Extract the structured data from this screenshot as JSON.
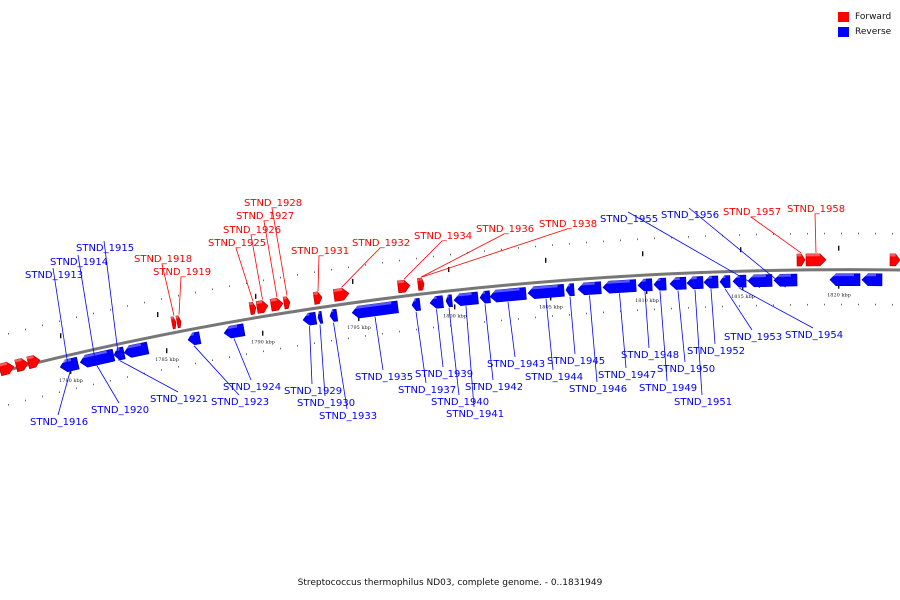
{
  "legend": [
    {
      "label": "Forward",
      "color": "#ff0000"
    },
    {
      "label": "Reverse",
      "color": "#0000ff"
    }
  ],
  "caption": "Streptococcus thermophilus ND03, complete genome. - 0..1831949",
  "colors": {
    "forward": "#ff0000",
    "reverse": "#0000ff",
    "backbone": "#777777"
  },
  "ticks": [
    {
      "label": "1780 kbp"
    },
    {
      "label": "1785 kbp"
    },
    {
      "label": "1790 kbp"
    },
    {
      "label": "1795 kbp"
    },
    {
      "label": "1800 kbp"
    },
    {
      "label": "1805 kbp"
    },
    {
      "label": "1810 kbp"
    },
    {
      "label": "1815 kbp"
    },
    {
      "label": "1820 kbp"
    }
  ],
  "genes": [
    {
      "name": "STND_1913",
      "strand": "reverse"
    },
    {
      "name": "STND_1914",
      "strand": "reverse"
    },
    {
      "name": "STND_1915",
      "strand": "reverse"
    },
    {
      "name": "STND_1916",
      "strand": "reverse"
    },
    {
      "name": "STND_1918",
      "strand": "forward"
    },
    {
      "name": "STND_1919",
      "strand": "forward"
    },
    {
      "name": "STND_1920",
      "strand": "reverse"
    },
    {
      "name": "STND_1921",
      "strand": "reverse"
    },
    {
      "name": "STND_1923",
      "strand": "reverse"
    },
    {
      "name": "STND_1924",
      "strand": "reverse"
    },
    {
      "name": "STND_1925",
      "strand": "forward"
    },
    {
      "name": "STND_1926",
      "strand": "forward"
    },
    {
      "name": "STND_1927",
      "strand": "forward"
    },
    {
      "name": "STND_1928",
      "strand": "forward"
    },
    {
      "name": "STND_1929",
      "strand": "reverse"
    },
    {
      "name": "STND_1930",
      "strand": "reverse"
    },
    {
      "name": "STND_1931",
      "strand": "forward"
    },
    {
      "name": "STND_1932",
      "strand": "forward"
    },
    {
      "name": "STND_1933",
      "strand": "reverse"
    },
    {
      "name": "STND_1934",
      "strand": "forward"
    },
    {
      "name": "STND_1935",
      "strand": "reverse"
    },
    {
      "name": "STND_1936",
      "strand": "forward"
    },
    {
      "name": "STND_1937",
      "strand": "reverse"
    },
    {
      "name": "STND_1938",
      "strand": "forward"
    },
    {
      "name": "STND_1939",
      "strand": "reverse"
    },
    {
      "name": "STND_1940",
      "strand": "reverse"
    },
    {
      "name": "STND_1941",
      "strand": "reverse"
    },
    {
      "name": "STND_1942",
      "strand": "reverse"
    },
    {
      "name": "STND_1943",
      "strand": "reverse"
    },
    {
      "name": "STND_1944",
      "strand": "reverse"
    },
    {
      "name": "STND_1945",
      "strand": "reverse"
    },
    {
      "name": "STND_1946",
      "strand": "reverse"
    },
    {
      "name": "STND_1947",
      "strand": "reverse"
    },
    {
      "name": "STND_1948",
      "strand": "reverse"
    },
    {
      "name": "STND_1949",
      "strand": "reverse"
    },
    {
      "name": "STND_1950",
      "strand": "reverse"
    },
    {
      "name": "STND_1951",
      "strand": "reverse"
    },
    {
      "name": "STND_1952",
      "strand": "reverse"
    },
    {
      "name": "STND_1953",
      "strand": "reverse"
    },
    {
      "name": "STND_1954",
      "strand": "reverse"
    },
    {
      "name": "STND_1955",
      "strand": "reverse"
    },
    {
      "name": "STND_1956",
      "strand": "reverse"
    },
    {
      "name": "STND_1957",
      "strand": "forward"
    },
    {
      "name": "STND_1958",
      "strand": "forward"
    }
  ]
}
